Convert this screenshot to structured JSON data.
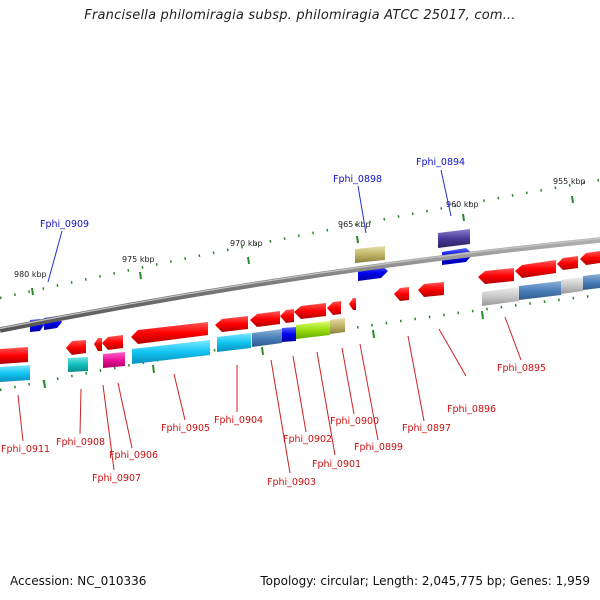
{
  "title": "Francisella philomiragia subsp. philomiragia ATCC 25017, com...",
  "footer": {
    "accession": "Accession: NC_010336",
    "summary": "Topology: circular; Length: 2,045,775 bp; Genes: 1,959"
  },
  "colors": {
    "backbone": "#808080",
    "tick": "#2a8a2a",
    "forward_label": "#1111cc",
    "reverse_label": "#cc1111",
    "leader_fwd": "#2233cc",
    "leader_rev": "#cc2222"
  },
  "ruler": [
    "955 kbp",
    "960 kbp",
    "965 kbp",
    "970 kbp",
    "975 kbp",
    "980 kbp"
  ],
  "genes_forward": [
    "Fphi_0894",
    "Fphi_0898",
    "Fphi_0909"
  ],
  "genes_reverse": [
    "Fphi_0895",
    "Fphi_0896",
    "Fphi_0897",
    "Fphi_0899",
    "Fphi_0900",
    "Fphi_0901",
    "Fphi_0902",
    "Fphi_0903",
    "Fphi_0904",
    "Fphi_0905",
    "Fphi_0906",
    "Fphi_0907",
    "Fphi_0908",
    "Fphi_0911"
  ]
}
